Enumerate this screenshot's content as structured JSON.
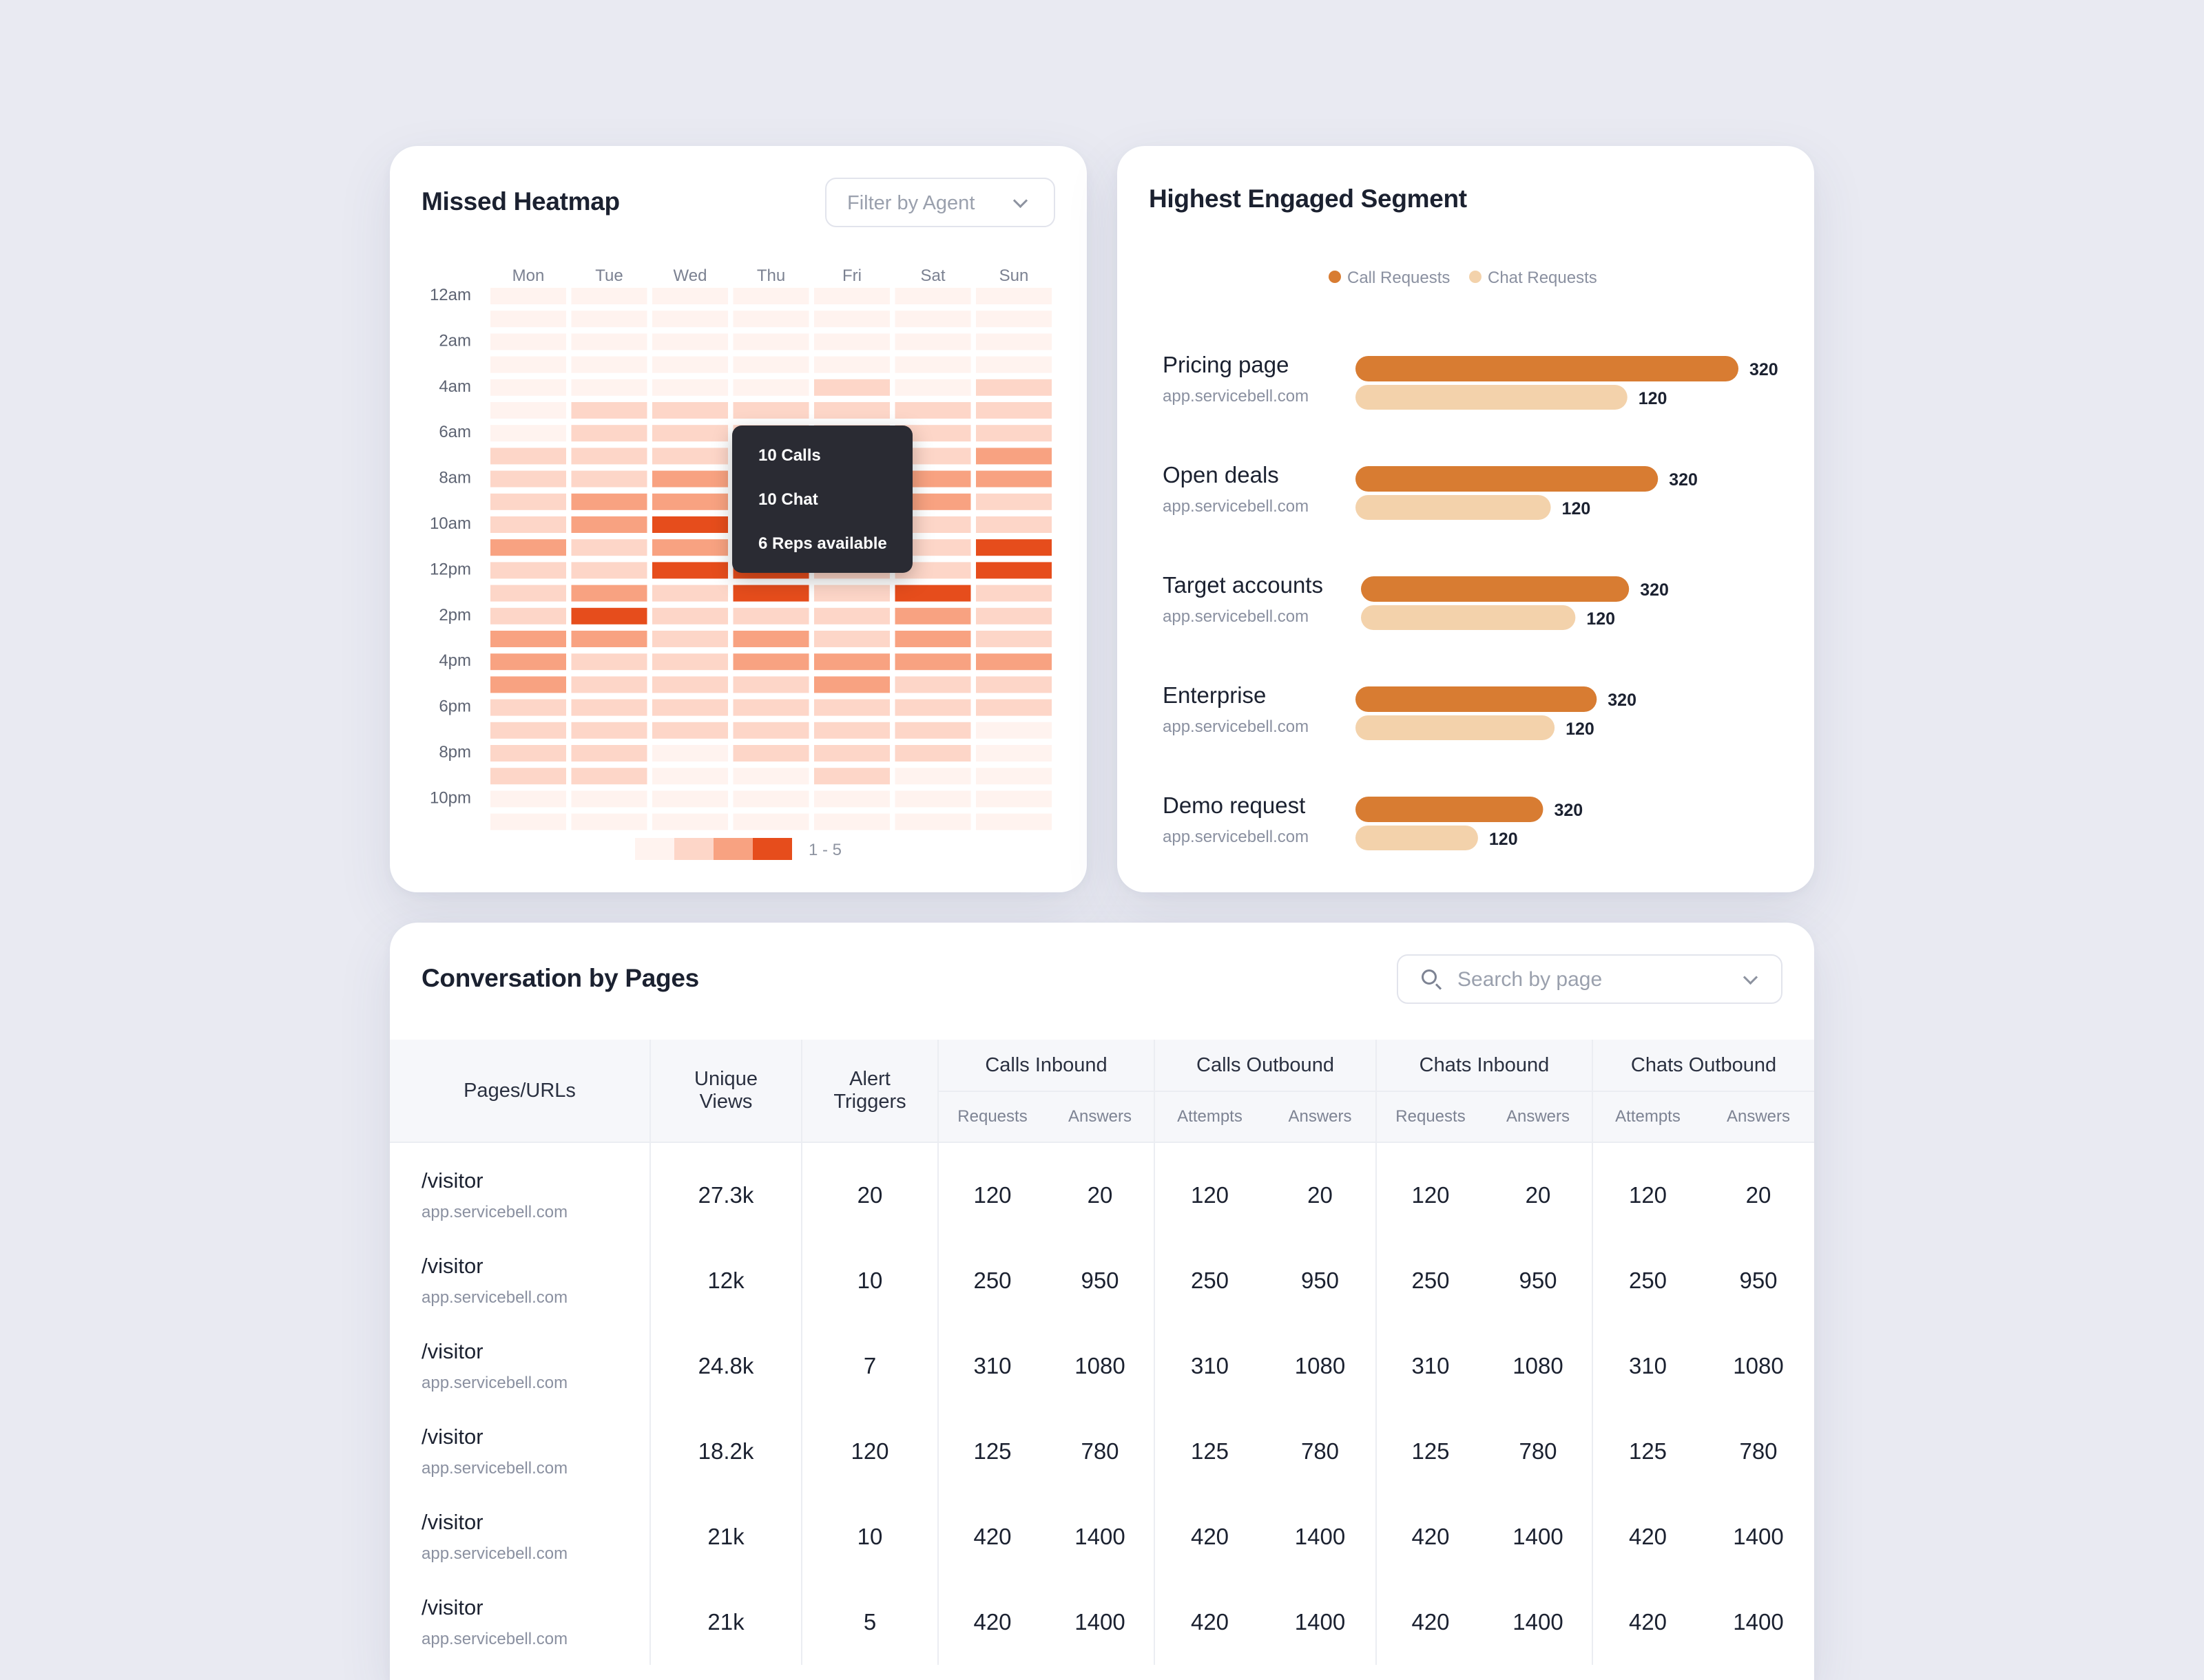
{
  "heatmap": {
    "title": "Missed Heatmap",
    "filter_placeholder": "Filter by Agent",
    "tooltip": {
      "calls": "10 Calls",
      "chats": "10 Chat",
      "reps": "6 Reps available"
    },
    "legend_range": "1 - 5",
    "colors": [
      "#fff3ef",
      "#fdd6c8",
      "#f8a281",
      "#e64d1c"
    ]
  },
  "segment": {
    "title": "Highest Engaged Segment",
    "legend": {
      "call": "Call Requests",
      "chat": "Chat Requests"
    },
    "colors": {
      "call": "#d87c32",
      "chat": "#f3d2ab"
    }
  },
  "chart_data": [
    {
      "type": "heatmap",
      "title": "Missed Heatmap",
      "x": [
        "Mon",
        "Tue",
        "Wed",
        "Thu",
        "Fri",
        "Sat",
        "Sun"
      ],
      "y_labels": [
        "12am",
        "2am",
        "4am",
        "6am",
        "8am",
        "10am",
        "12pm",
        "2pm",
        "4pm",
        "6pm",
        "8pm",
        "10pm"
      ],
      "rows": 24,
      "levels": [
        [
          0,
          0,
          0,
          0,
          0,
          0,
          0
        ],
        [
          0,
          0,
          0,
          0,
          0,
          0,
          0
        ],
        [
          0,
          0,
          0,
          0,
          0,
          0,
          0
        ],
        [
          0,
          0,
          0,
          0,
          0,
          0,
          0
        ],
        [
          0,
          0,
          0,
          0,
          1,
          0,
          1
        ],
        [
          0,
          1,
          1,
          1,
          1,
          1,
          1
        ],
        [
          0,
          1,
          1,
          1,
          1,
          1,
          1
        ],
        [
          1,
          1,
          1,
          1,
          1,
          1,
          2
        ],
        [
          1,
          1,
          2,
          1,
          1,
          2,
          2
        ],
        [
          1,
          2,
          2,
          1,
          1,
          2,
          1
        ],
        [
          1,
          2,
          3,
          1,
          1,
          1,
          1
        ],
        [
          2,
          1,
          2,
          1,
          1,
          1,
          3
        ],
        [
          1,
          1,
          3,
          3,
          1,
          1,
          3
        ],
        [
          1,
          2,
          1,
          3,
          1,
          3,
          1
        ],
        [
          1,
          3,
          1,
          1,
          1,
          2,
          1
        ],
        [
          2,
          2,
          1,
          2,
          1,
          2,
          1
        ],
        [
          2,
          1,
          1,
          2,
          2,
          2,
          2
        ],
        [
          2,
          1,
          1,
          1,
          2,
          1,
          1
        ],
        [
          1,
          1,
          1,
          1,
          1,
          1,
          1
        ],
        [
          1,
          1,
          1,
          1,
          1,
          1,
          0
        ],
        [
          1,
          1,
          0,
          1,
          1,
          1,
          0
        ],
        [
          1,
          1,
          0,
          0,
          1,
          0,
          0
        ],
        [
          0,
          0,
          0,
          0,
          0,
          0,
          0
        ],
        [
          0,
          0,
          0,
          0,
          0,
          0,
          0
        ]
      ]
    },
    {
      "type": "bar",
      "title": "Highest Engaged Segment",
      "categories": [
        "Pricing page",
        "Open deals",
        "Target accounts",
        "Enterprise",
        "Demo request"
      ],
      "subtitles": [
        "app.servicebell.com",
        "app.servicebell.com",
        "app.servicebell.com",
        "app.servicebell.com",
        "app.servicebell.com"
      ],
      "series": [
        {
          "name": "Call Requests",
          "values": [
            320,
            320,
            320,
            320,
            320
          ],
          "fill": [
            1.0,
            0.79,
            0.7,
            0.63,
            0.49
          ]
        },
        {
          "name": "Chat Requests",
          "values": [
            120,
            120,
            120,
            120,
            120
          ],
          "fill": [
            0.71,
            0.51,
            0.56,
            0.52,
            0.32
          ]
        }
      ]
    }
  ],
  "table": {
    "title": "Conversation by Pages",
    "search_placeholder": "Search by page",
    "headers": {
      "pages": "Pages/URLs",
      "unique": [
        "Unique",
        "Views"
      ],
      "alerts": [
        "Alert",
        "Triggers"
      ],
      "groups": [
        "Calls Inbound",
        "Calls Outbound",
        "Chats Inbound",
        "Chats Outbound"
      ],
      "subs": [
        "Requests",
        "Answers",
        "Attempts",
        "Answers",
        "Requests",
        "Answers",
        "Attempts",
        "Answers"
      ]
    },
    "rows": [
      {
        "path": "/visitor",
        "url": "app.servicebell.com",
        "views": "27.3k",
        "alerts": "20",
        "vals": [
          "120",
          "20",
          "120",
          "20",
          "120",
          "20",
          "120",
          "20"
        ]
      },
      {
        "path": "/visitor",
        "url": "app.servicebell.com",
        "views": "12k",
        "alerts": "10",
        "vals": [
          "250",
          "950",
          "250",
          "950",
          "250",
          "950",
          "250",
          "950"
        ]
      },
      {
        "path": "/visitor",
        "url": "app.servicebell.com",
        "views": "24.8k",
        "alerts": "7",
        "vals": [
          "310",
          "1080",
          "310",
          "1080",
          "310",
          "1080",
          "310",
          "1080"
        ]
      },
      {
        "path": "/visitor",
        "url": "app.servicebell.com",
        "views": "18.2k",
        "alerts": "120",
        "vals": [
          "125",
          "780",
          "125",
          "780",
          "125",
          "780",
          "125",
          "780"
        ]
      },
      {
        "path": "/visitor",
        "url": "app.servicebell.com",
        "views": "21k",
        "alerts": "10",
        "vals": [
          "420",
          "1400",
          "420",
          "1400",
          "420",
          "1400",
          "420",
          "1400"
        ]
      },
      {
        "path": "/visitor",
        "url": "app.servicebell.com",
        "views": "21k",
        "alerts": "5",
        "vals": [
          "420",
          "1400",
          "420",
          "1400",
          "420",
          "1400",
          "420",
          "1400"
        ]
      }
    ]
  }
}
